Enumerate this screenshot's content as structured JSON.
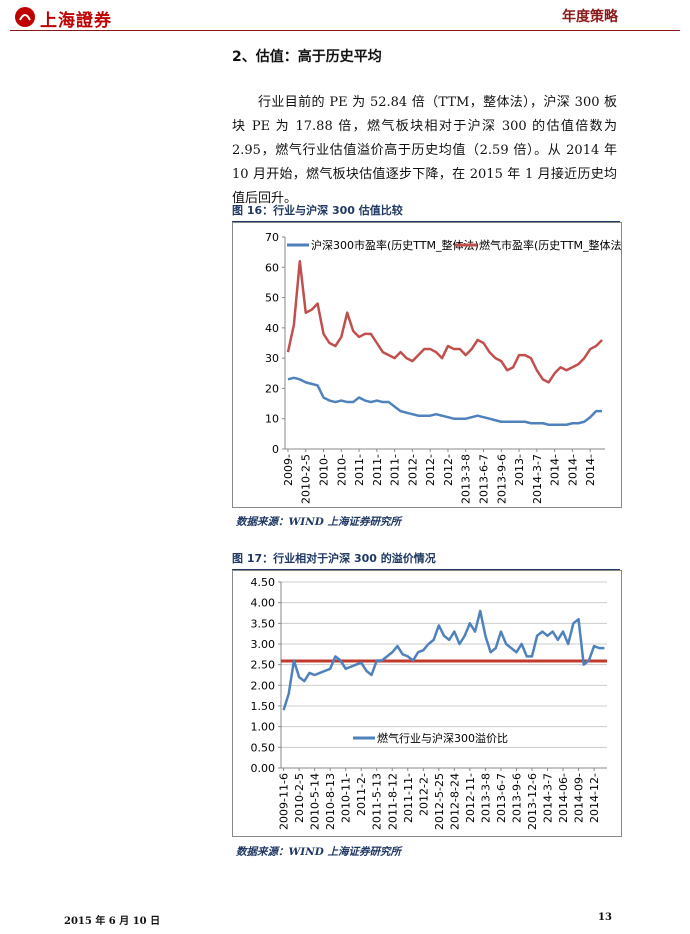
{
  "header": {
    "logo": "上海證券",
    "right": "年度策略"
  },
  "section_title": "2、估值：高于历史平均",
  "paragraph": "行业目前的 PE 为 52.84 倍（TTM，整体法），沪深 300 板块 PE 为 17.88 倍，燃气板块相对于沪深 300 的估值倍数为 2.95，燃气行业估值溢价高于历史均值（2.59 倍）。从 2014 年 10 月开始，燃气板块估值逐步下降，在 2015 年 1 月接近历史均值后回升。",
  "figures": [
    {
      "caption": "图 16：行业与沪深 300 估值比较",
      "source": "数据来源：WIND 上海证券研究所"
    },
    {
      "caption": "图 17：行业相对于沪深 300 的溢价情况",
      "source": "数据来源：WIND 上海证券研究所"
    }
  ],
  "chart_data": [
    {
      "type": "line",
      "legend": "top",
      "grid": false,
      "categories": [
        "2009-",
        null,
        null,
        "2010-2-5",
        null,
        null,
        "2010-",
        null,
        null,
        "2010-",
        null,
        null,
        "2011-",
        null,
        null,
        "2011-",
        null,
        null,
        "2011-",
        null,
        null,
        "2012-",
        null,
        null,
        "2012-",
        null,
        null,
        "2012-",
        null,
        null,
        "2013-3-8",
        null,
        null,
        "2013-6-7",
        null,
        null,
        "2013-9-6",
        null,
        null,
        "2013-",
        null,
        null,
        "2014-3-7",
        null,
        null,
        "2014-",
        null,
        null,
        "2014-",
        null,
        null,
        "2014-",
        null,
        null
      ],
      "ylim": [
        0,
        70
      ],
      "yticks": [
        0,
        10,
        20,
        30,
        40,
        50,
        60,
        70
      ],
      "series": [
        {
          "name": "沪深300市盈率(历史TTM_整体法)",
          "color": "#4f81bd",
          "values": [
            23,
            23.5,
            23,
            22,
            21.5,
            21,
            17,
            16,
            15.5,
            16,
            15.5,
            15.5,
            17,
            16,
            15.5,
            16,
            15.5,
            15.5,
            14,
            12.5,
            12,
            11.5,
            11,
            11,
            11,
            11.5,
            11,
            10.5,
            10,
            10,
            10,
            10.5,
            11,
            10.5,
            10,
            9.5,
            9,
            9,
            9,
            9,
            9,
            8.5,
            8.5,
            8.5,
            8,
            8,
            8,
            8,
            8.5,
            8.5,
            9,
            10.5,
            12.5,
            12.5
          ]
        },
        {
          "name": "燃气市盈率(历史TTM_整体法)",
          "color": "#c0504d",
          "values": [
            32,
            41,
            62,
            45,
            46,
            48,
            38,
            35,
            34,
            37,
            45,
            39,
            37,
            38,
            38,
            35,
            32,
            31,
            30,
            32,
            30,
            29,
            31,
            33,
            33,
            32,
            30,
            34,
            33,
            33,
            31,
            33,
            36,
            35,
            32,
            30,
            29,
            26,
            27,
            31,
            31,
            30,
            26,
            23,
            22,
            25,
            27,
            26,
            27,
            28,
            30,
            33,
            34,
            36
          ]
        }
      ]
    },
    {
      "type": "line",
      "legend": "bottom",
      "grid": true,
      "categories": [
        "2009-11-6",
        null,
        null,
        "2010-2-5",
        null,
        null,
        "2010-5-14",
        null,
        null,
        "2010-8-13",
        null,
        null,
        "2010-11-",
        null,
        null,
        "2011-2-",
        null,
        null,
        "2011-5-13",
        null,
        null,
        "2011-8-12",
        null,
        null,
        "2011-11-",
        null,
        null,
        "2012-2-",
        null,
        null,
        "2012-5-25",
        null,
        null,
        "2012-8-24",
        null,
        null,
        "2012-11-",
        null,
        null,
        "2013-3-8",
        null,
        null,
        "2013-6-7",
        null,
        null,
        "2013-9-6",
        null,
        null,
        "2013-12-6",
        null,
        null,
        "2014-3-7",
        null,
        null,
        "2014-06-",
        null,
        null,
        "2014-09-",
        null,
        null,
        "2014-12-",
        null,
        null
      ],
      "ylim": [
        0,
        4.5
      ],
      "yticks": [
        {
          "value": 0,
          "label": "0.00"
        },
        {
          "value": 0.5,
          "label": "0.50"
        },
        {
          "value": 1,
          "label": "1.00"
        },
        {
          "value": 1.5,
          "label": "1.50"
        },
        {
          "value": 2,
          "label": "2.00"
        },
        {
          "value": 2.5,
          "label": "2.50"
        },
        {
          "value": 3,
          "label": "3.00"
        },
        {
          "value": 3.5,
          "label": "3.50"
        },
        {
          "value": 4,
          "label": "4.00"
        },
        {
          "value": 4.5,
          "label": "4.50"
        }
      ],
      "reference_line": {
        "value": 2.59,
        "color": "#c0392b"
      },
      "series": [
        {
          "name": "燃气行业与沪深300溢价比",
          "color": "#4f81bd",
          "values": [
            1.4,
            1.8,
            2.6,
            2.2,
            2.1,
            2.3,
            2.25,
            2.3,
            2.35,
            2.4,
            2.7,
            2.6,
            2.4,
            2.45,
            2.5,
            2.55,
            2.35,
            2.25,
            2.6,
            2.6,
            2.7,
            2.8,
            2.95,
            2.75,
            2.7,
            2.6,
            2.8,
            2.85,
            3.0,
            3.1,
            3.45,
            3.2,
            3.1,
            3.3,
            3.0,
            3.2,
            3.5,
            3.3,
            3.8,
            3.2,
            2.8,
            2.9,
            3.3,
            3.0,
            2.9,
            2.8,
            3.0,
            2.7,
            2.7,
            3.2,
            3.3,
            3.2,
            3.3,
            3.1,
            3.3,
            3.0,
            3.5,
            3.6,
            2.5,
            2.6,
            2.95,
            2.9,
            2.9
          ]
        }
      ]
    }
  ],
  "footer": {
    "date": "2015 年 6 月 10 日",
    "page": "13"
  }
}
